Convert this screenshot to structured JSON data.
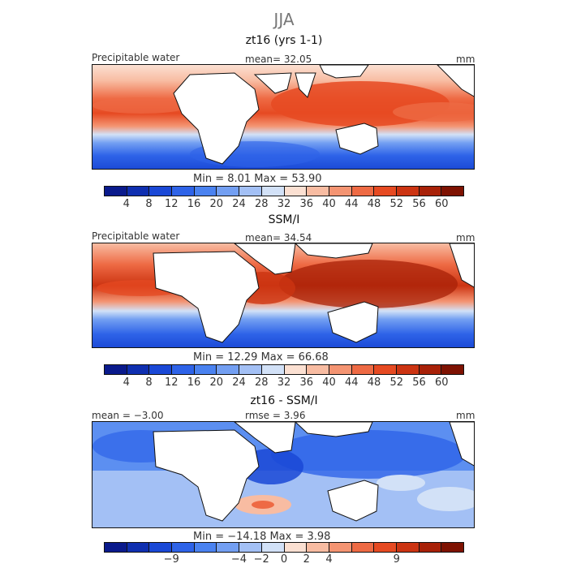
{
  "figure": {
    "title": "JJA"
  },
  "panels": [
    {
      "title": "zt16 (yrs 1-1)",
      "left_label": "Precipitable water",
      "center_stat": "mean=   32.05",
      "unit": "mm",
      "minmax": "Min =     8.01  Max =   53.90"
    },
    {
      "title": "SSM/I",
      "left_label": "Precipitable water",
      "center_stat": "mean=   34.54",
      "unit": "mm",
      "minmax": "Min =   12.29  Max =   66.68"
    },
    {
      "title": "zt16 - SSM/I",
      "left_label": "mean =  −3.00",
      "center_stat": "rmse =     3.96",
      "unit": "mm",
      "minmax": "Min = −14.18  Max =     3.98"
    }
  ],
  "colorbars": {
    "pw_ticks": [
      "4",
      "8",
      "12",
      "16",
      "20",
      "24",
      "28",
      "32",
      "36",
      "40",
      "44",
      "48",
      "52",
      "56",
      "60"
    ],
    "diff_ticks": [
      "−9",
      "−4",
      "−2",
      "0",
      "2",
      "4",
      "9"
    ],
    "colors": [
      "#0a1a8c",
      "#0f2fb0",
      "#1a48d6",
      "#2e63e8",
      "#4a82f0",
      "#739ff2",
      "#a3c0f5",
      "#d2e1f7",
      "#fbe0d2",
      "#f8bca2",
      "#f49472",
      "#ee6a44",
      "#e64a22",
      "#cc3412",
      "#a82108",
      "#7e1202"
    ]
  },
  "regions": {
    "land": "#ffffff",
    "coast": "#111111"
  }
}
